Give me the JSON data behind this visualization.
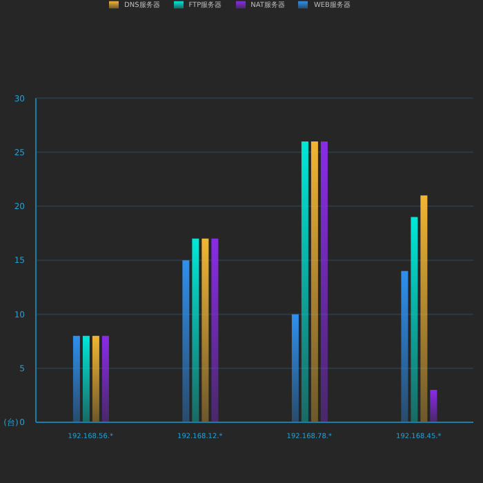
{
  "chart_data": {
    "type": "bar",
    "ylabel": "(台)",
    "categories": [
      "192.168.56.*",
      "192.168.12.*",
      "192.168.78.*",
      "192.168.45.*"
    ],
    "series": [
      {
        "name": "WEB服务器",
        "color": "#2e90ee",
        "values": [
          8,
          15,
          10,
          14
        ]
      },
      {
        "name": "FTP服务器",
        "color": "#00e8d8",
        "values": [
          8,
          17,
          26,
          19
        ]
      },
      {
        "name": "DNS服务器",
        "color": "#f2b534",
        "values": [
          8,
          17,
          26,
          21
        ]
      },
      {
        "name": "NAT服务器",
        "color": "#8a2be8",
        "values": [
          8,
          17,
          26,
          3
        ]
      }
    ],
    "ylim": [
      0,
      30
    ],
    "yticks": [
      0,
      5,
      10,
      15,
      20,
      25,
      30
    ],
    "grid": "y",
    "legend": "top"
  }
}
